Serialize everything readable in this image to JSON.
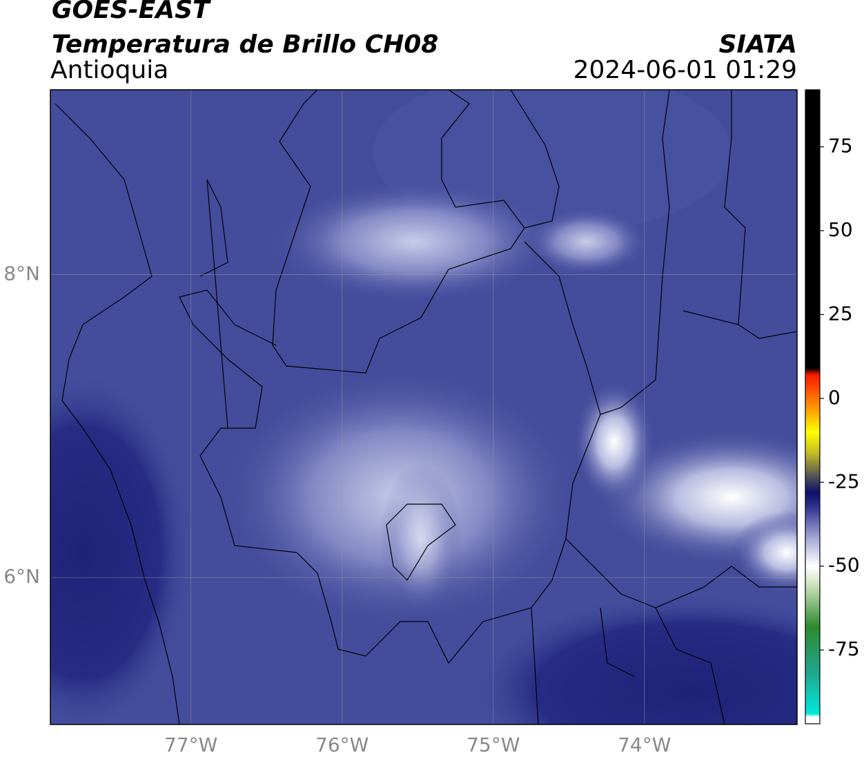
{
  "header": {
    "title": "GOES-EAST",
    "subtitle": "Temperatura de Brillo CH08",
    "region": "Antioquia",
    "source": "SIATA",
    "datetime": "2024-06-01 01:29"
  },
  "map": {
    "xlim": [
      -77.93,
      -72.99
    ],
    "ylim": [
      5.03,
      9.22
    ],
    "xticks": [
      {
        "value": -77,
        "label": "77°W"
      },
      {
        "value": -76,
        "label": "76°W"
      },
      {
        "value": -75,
        "label": "75°W"
      },
      {
        "value": -74,
        "label": "74°W"
      }
    ],
    "yticks": [
      {
        "value": 8,
        "label": "8°N"
      },
      {
        "value": 6,
        "label": "6°N"
      }
    ],
    "grid": true
  },
  "colorbar": {
    "lim": [
      -97,
      92
    ],
    "ticks": [
      75,
      50,
      25,
      0,
      -25,
      -50,
      -75
    ],
    "stops": [
      {
        "value": -97,
        "color": "#ffffff"
      },
      {
        "value": -95,
        "color": "#ffffff"
      },
      {
        "value": -94,
        "color": "#00e8dc"
      },
      {
        "value": -82,
        "color": "#1fa890"
      },
      {
        "value": -68,
        "color": "#2e8a2e"
      },
      {
        "value": -56,
        "color": "#c8e0b8"
      },
      {
        "value": -50,
        "color": "#ffffff"
      },
      {
        "value": -42,
        "color": "#a8acd8"
      },
      {
        "value": -32,
        "color": "#2a2f8c"
      },
      {
        "value": -28,
        "color": "#0e106a"
      },
      {
        "value": -23,
        "color": "#555555"
      },
      {
        "value": -16,
        "color": "#c8c020"
      },
      {
        "value": -10,
        "color": "#ffff00"
      },
      {
        "value": -3,
        "color": "#ff9900"
      },
      {
        "value": 7,
        "color": "#ff1a00"
      },
      {
        "value": 9,
        "color": "#000000"
      },
      {
        "value": 92,
        "color": "#000000"
      }
    ]
  }
}
